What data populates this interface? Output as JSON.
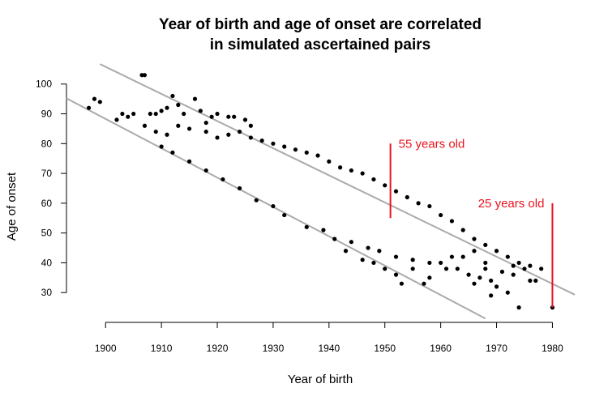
{
  "chart_data": {
    "type": "scatter",
    "title": [
      "Year of birth and age of onset are correlated",
      "in simulated ascertained pairs"
    ],
    "xlabel": "Year of birth",
    "ylabel": "Age of onset",
    "xlim": [
      1893,
      1984
    ],
    "ylim": [
      20,
      107
    ],
    "xticks": [
      1900,
      1910,
      1920,
      1930,
      1940,
      1950,
      1960,
      1970,
      1980
    ],
    "yticks": [
      30,
      40,
      50,
      60,
      70,
      80,
      90,
      100
    ],
    "grid": false,
    "point_color": "#000000",
    "band_color": "#aaaaaa",
    "annotation_color": "#e8141e",
    "band_lines": [
      {
        "x": [
          1899,
          1984
        ],
        "y": [
          106.7,
          29.3
        ]
      },
      {
        "x": [
          1893,
          1968
        ],
        "y": [
          95.2,
          21.3
        ]
      }
    ],
    "annotations": [
      {
        "label": "55 years old",
        "x": 1951,
        "y_top": 80,
        "y_bottom": 55
      },
      {
        "label": "25 years old",
        "x": 1980,
        "y_top": 60,
        "y_bottom": 25
      }
    ],
    "points": [
      [
        1897,
        92
      ],
      [
        1898,
        95
      ],
      [
        1899,
        94
      ],
      [
        1906.5,
        103
      ],
      [
        1907,
        103
      ],
      [
        1912,
        96
      ],
      [
        1916,
        95
      ],
      [
        1902,
        88
      ],
      [
        1904,
        89
      ],
      [
        1903,
        90
      ],
      [
        1905,
        90
      ],
      [
        1908,
        90
      ],
      [
        1909,
        90
      ],
      [
        1910,
        91
      ],
      [
        1911,
        92
      ],
      [
        1913,
        93
      ],
      [
        1914,
        90
      ],
      [
        1917,
        91
      ],
      [
        1919,
        89
      ],
      [
        1920,
        90
      ],
      [
        1922,
        89
      ],
      [
        1923,
        89
      ],
      [
        1925,
        88
      ],
      [
        1926,
        86
      ],
      [
        1918,
        87
      ],
      [
        1907,
        86
      ],
      [
        1909,
        84
      ],
      [
        1911,
        83
      ],
      [
        1913,
        86
      ],
      [
        1915,
        85
      ],
      [
        1918,
        84
      ],
      [
        1920,
        82
      ],
      [
        1922,
        83
      ],
      [
        1924,
        84
      ],
      [
        1926,
        82
      ],
      [
        1928,
        81
      ],
      [
        1930,
        80
      ],
      [
        1932,
        79
      ],
      [
        1934,
        78
      ],
      [
        1936,
        77
      ],
      [
        1938,
        76
      ],
      [
        1940,
        74
      ],
      [
        1942,
        72
      ],
      [
        1944,
        71
      ],
      [
        1946,
        70
      ],
      [
        1948,
        68
      ],
      [
        1950,
        66
      ],
      [
        1952,
        64
      ],
      [
        1954,
        62
      ],
      [
        1956,
        60
      ],
      [
        1958,
        59
      ],
      [
        1960,
        56
      ],
      [
        1962,
        54
      ],
      [
        1964,
        51
      ],
      [
        1966,
        48
      ],
      [
        1968,
        46
      ],
      [
        1970,
        44
      ],
      [
        1972,
        42
      ],
      [
        1974,
        40
      ],
      [
        1976,
        39
      ],
      [
        1978,
        38
      ],
      [
        1960,
        40
      ],
      [
        1962,
        42
      ],
      [
        1964,
        42
      ],
      [
        1966,
        44
      ],
      [
        1968,
        38
      ],
      [
        1969,
        34
      ],
      [
        1970,
        32
      ],
      [
        1972,
        30
      ],
      [
        1969,
        29
      ],
      [
        1974,
        25
      ],
      [
        1976,
        34
      ],
      [
        1977,
        34
      ],
      [
        1966,
        33
      ],
      [
        1967,
        35
      ],
      [
        1958,
        35
      ],
      [
        1955,
        38
      ],
      [
        1952,
        36
      ],
      [
        1950,
        38
      ],
      [
        1953,
        33
      ],
      [
        1957,
        33
      ],
      [
        1946,
        41
      ],
      [
        1948,
        40
      ],
      [
        1943,
        44
      ],
      [
        1941,
        48
      ],
      [
        1936,
        52
      ],
      [
        1932,
        56
      ],
      [
        1930,
        59
      ],
      [
        1927,
        61
      ],
      [
        1924,
        65
      ],
      [
        1921,
        68
      ],
      [
        1918,
        71
      ],
      [
        1915,
        74
      ],
      [
        1912,
        77
      ],
      [
        1910,
        79
      ],
      [
        1939,
        51
      ],
      [
        1944,
        47
      ],
      [
        1947,
        45
      ],
      [
        1949,
        44
      ],
      [
        1952,
        42
      ],
      [
        1955,
        41
      ],
      [
        1958,
        40
      ],
      [
        1961,
        38
      ],
      [
        1963,
        38
      ],
      [
        1965,
        36
      ],
      [
        1971,
        37
      ],
      [
        1973,
        36
      ],
      [
        1973,
        39
      ],
      [
        1975,
        38
      ],
      [
        1968,
        40
      ],
      [
        1980,
        25
      ]
    ]
  }
}
